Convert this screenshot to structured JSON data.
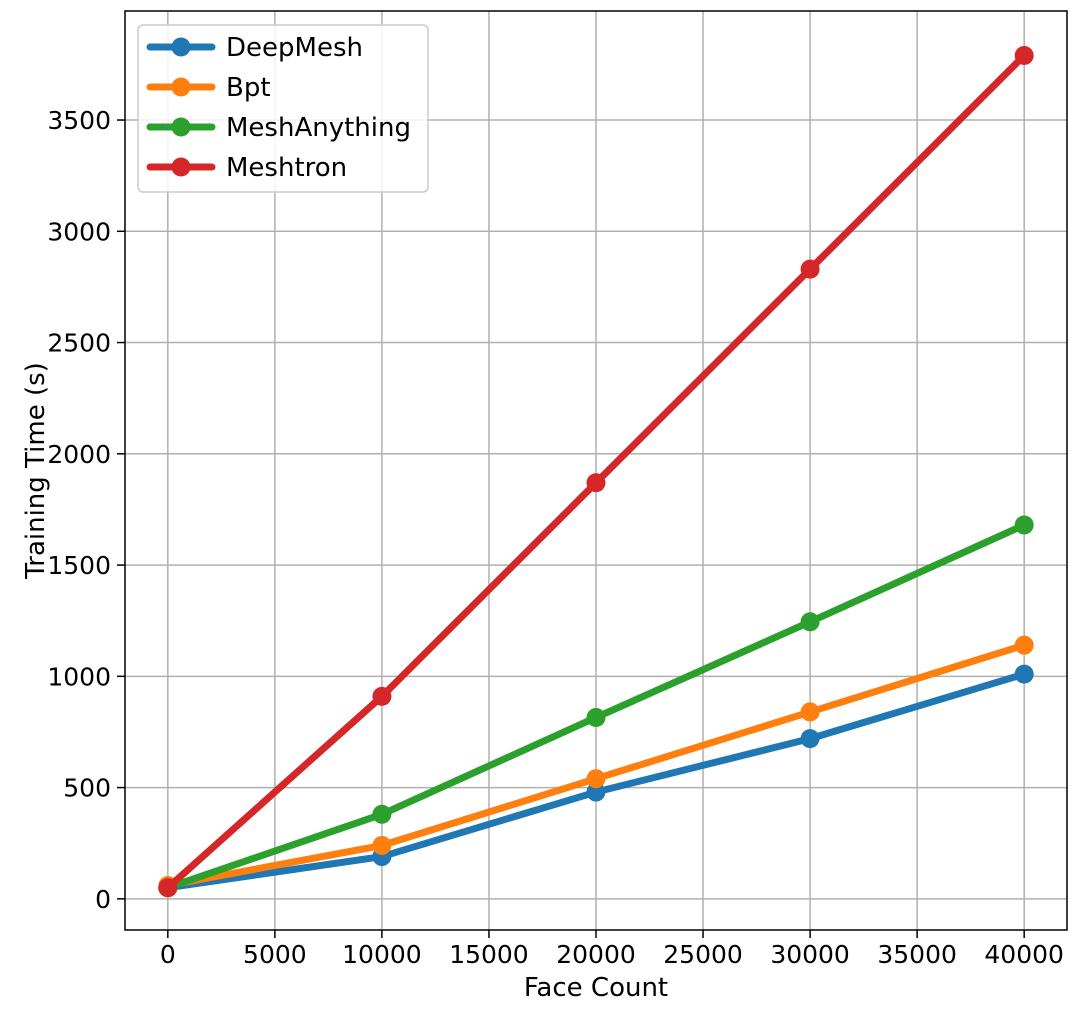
{
  "chart_data": {
    "type": "line",
    "title": "",
    "xlabel": "Face Count",
    "ylabel": "Training Time (s)",
    "xlim": [
      -2000,
      42000
    ],
    "ylim": [
      -140,
      3990
    ],
    "x": [
      0,
      10000,
      20000,
      30000,
      40000
    ],
    "xticks": [
      0,
      5000,
      10000,
      15000,
      20000,
      25000,
      30000,
      35000,
      40000
    ],
    "yticks": [
      0,
      500,
      1000,
      1500,
      2000,
      2500,
      3000,
      3500
    ],
    "grid": true,
    "legend_position": "top-left",
    "series": [
      {
        "name": "DeepMesh",
        "color": "#1f77b4",
        "values": [
          50,
          190,
          480,
          720,
          1010
        ]
      },
      {
        "name": "Bpt",
        "color": "#ff7f0e",
        "values": [
          60,
          240,
          540,
          840,
          1140
        ]
      },
      {
        "name": "MeshAnything",
        "color": "#2ca02c",
        "values": [
          50,
          380,
          815,
          1245,
          1680
        ]
      },
      {
        "name": "Meshtron",
        "color": "#d62728",
        "values": [
          50,
          910,
          1870,
          2830,
          3790
        ]
      }
    ]
  }
}
